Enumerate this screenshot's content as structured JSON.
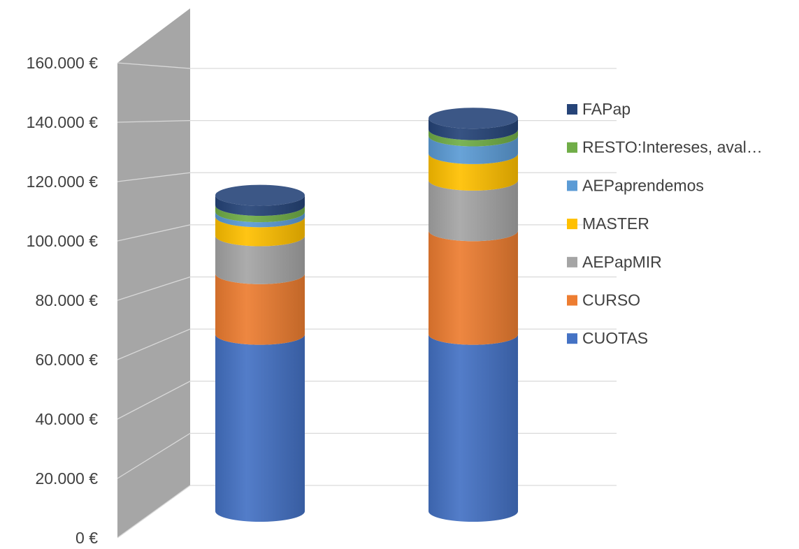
{
  "chart_data": {
    "type": "bar",
    "stacked": true,
    "style": "3d-cylinder",
    "categories": [
      "",
      ""
    ],
    "y_tick_labels": [
      "0 €",
      "20.000 €",
      "40.000 €",
      "60.000 €",
      "80.000 €",
      "100.000 €",
      "120.000 €",
      "140.000 €",
      "160.000 €"
    ],
    "ylim": [
      0,
      160000
    ],
    "y_major_step": 20000,
    "grid": true,
    "legend_position": "right",
    "series": [
      {
        "name": "CUOTAS",
        "color": "#4472C4",
        "values": [
          70000,
          70000
        ]
      },
      {
        "name": "CURSO",
        "color": "#ED7D31",
        "values": [
          24000,
          41000
        ]
      },
      {
        "name": "AEPapMIR",
        "color": "#A5A5A5",
        "values": [
          15000,
          20000
        ]
      },
      {
        "name": "MASTER",
        "color": "#FFC000",
        "values": [
          7500,
          10500
        ]
      },
      {
        "name": "AEPaprendemos",
        "color": "#5B9BD5",
        "values": [
          2000,
          7000
        ]
      },
      {
        "name": "RESTO:Intereses, aval…",
        "color": "#70AD47",
        "values": [
          2500,
          2500
        ]
      },
      {
        "name": "FAPap",
        "color": "#264478",
        "values": [
          4000,
          4500
        ]
      }
    ]
  }
}
